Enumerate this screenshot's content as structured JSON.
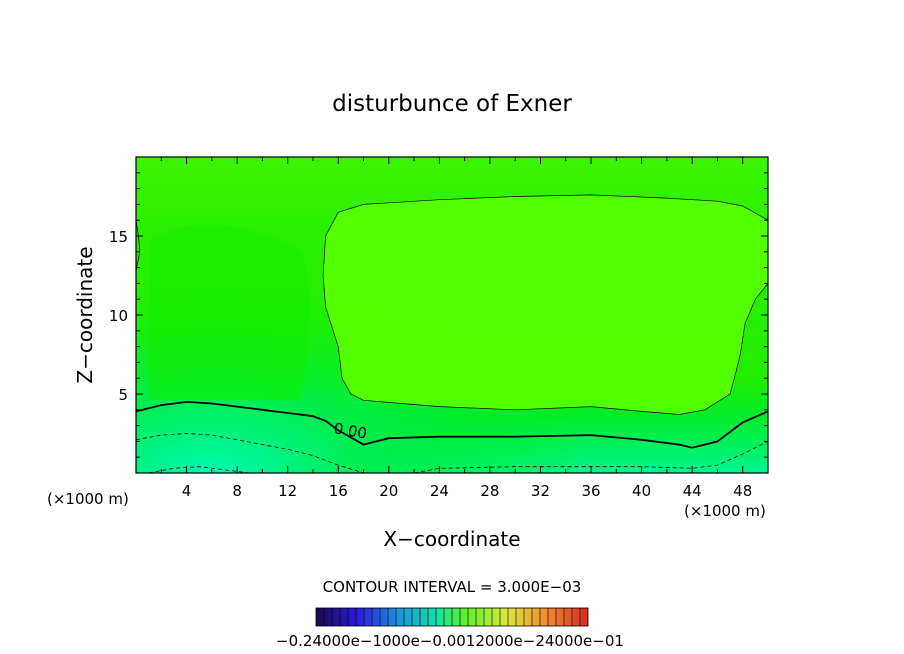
{
  "title": "disturbunce of Exner",
  "axes": {
    "xlabel": "X−coordinate",
    "ylabel": "Z−coordinate",
    "x_unit_left": "(×1000 m)",
    "x_unit_right": "(×1000 m)"
  },
  "contour_interval_text": "CONTOUR INTERVAL = 3.000E−03",
  "colorbar_labels_text": "−0.24000e−1000e−0.0012000e−24000e−01",
  "colors": {
    "field_light": "#55ff00",
    "field_mid": "#2ef200",
    "field_dark": "#00ee1c",
    "field_cyan": "#00f7a0"
  },
  "chart_data": {
    "type": "heatmap",
    "title": "disturbunce of Exner",
    "xlabel": "X−coordinate",
    "ylabel": "Z−coordinate",
    "x_unit": "(×1000 m)",
    "xlim": [
      0,
      50
    ],
    "ylim": [
      0,
      20
    ],
    "x_ticks": [
      4,
      8,
      12,
      16,
      20,
      24,
      28,
      32,
      36,
      40,
      44,
      48
    ],
    "y_ticks": [
      5,
      10,
      15
    ],
    "contour_interval": "3.000E-03",
    "contours": [
      {
        "level": 0.0,
        "label": "0.00",
        "style": "solid-thick",
        "points": [
          [
            0,
            3.9
          ],
          [
            2,
            4.3
          ],
          [
            4,
            4.5
          ],
          [
            6,
            4.4
          ],
          [
            8,
            4.2
          ],
          [
            10,
            4.0
          ],
          [
            12,
            3.8
          ],
          [
            14,
            3.6
          ],
          [
            15,
            3.3
          ],
          [
            16,
            2.7
          ],
          [
            18,
            1.8
          ],
          [
            20,
            2.2
          ],
          [
            24,
            2.3
          ],
          [
            30,
            2.3
          ],
          [
            36,
            2.4
          ],
          [
            40,
            2.1
          ],
          [
            43,
            1.8
          ],
          [
            44,
            1.6
          ],
          [
            46,
            2.0
          ],
          [
            48,
            3.2
          ],
          [
            50,
            3.9
          ]
        ]
      },
      {
        "level": 0.003,
        "label": "",
        "style": "solid-thin",
        "points": [
          [
            14.8,
            12.5
          ],
          [
            15,
            15
          ],
          [
            16,
            16.5
          ],
          [
            18,
            17.0
          ],
          [
            24,
            17.3
          ],
          [
            30,
            17.5
          ],
          [
            36,
            17.6
          ],
          [
            42,
            17.4
          ],
          [
            46,
            17.2
          ],
          [
            48,
            16.9
          ],
          [
            50,
            16.0
          ]
        ]
      },
      {
        "level": 0.003,
        "label": "",
        "style": "solid-thin",
        "points": [
          [
            14.8,
            12.5
          ],
          [
            15,
            10.5
          ],
          [
            16,
            8
          ],
          [
            16.3,
            6
          ],
          [
            17,
            5
          ],
          [
            18,
            4.6
          ],
          [
            24,
            4.2
          ],
          [
            30,
            4.0
          ],
          [
            36,
            4.2
          ],
          [
            40,
            3.9
          ],
          [
            43,
            3.7
          ],
          [
            45,
            4.0
          ],
          [
            47,
            5.0
          ],
          [
            47.5,
            6.5
          ],
          [
            47.8,
            7.5
          ],
          [
            48.2,
            9.5
          ],
          [
            49,
            11
          ],
          [
            50,
            12
          ]
        ]
      },
      {
        "level": 0.003,
        "label": "",
        "style": "solid-thin",
        "points": [
          [
            0,
            12.8
          ],
          [
            0.3,
            14
          ],
          [
            0.2,
            15
          ],
          [
            0,
            16
          ]
        ]
      },
      {
        "level": -0.003,
        "label": "",
        "style": "dashed",
        "points": [
          [
            0,
            2.1
          ],
          [
            2,
            2.4
          ],
          [
            4,
            2.5
          ],
          [
            6,
            2.4
          ],
          [
            8,
            2.1
          ],
          [
            10,
            1.8
          ],
          [
            12,
            1.5
          ],
          [
            14,
            1.1
          ],
          [
            16,
            0.5
          ],
          [
            18,
            0
          ]
        ]
      },
      {
        "level": -0.003,
        "label": "",
        "style": "dashed",
        "points": [
          [
            22,
            0
          ],
          [
            24,
            0.3
          ],
          [
            30,
            0.4
          ],
          [
            36,
            0.4
          ],
          [
            40,
            0.4
          ],
          [
            44,
            0.3
          ],
          [
            46,
            0.5
          ],
          [
            48,
            1.2
          ],
          [
            50,
            2.0
          ]
        ]
      },
      {
        "level": -0.006,
        "label": "",
        "style": "dashed",
        "points": [
          [
            1,
            0
          ],
          [
            3,
            0.3
          ],
          [
            5,
            0.4
          ],
          [
            7,
            0.2
          ],
          [
            9,
            0
          ]
        ]
      }
    ]
  }
}
